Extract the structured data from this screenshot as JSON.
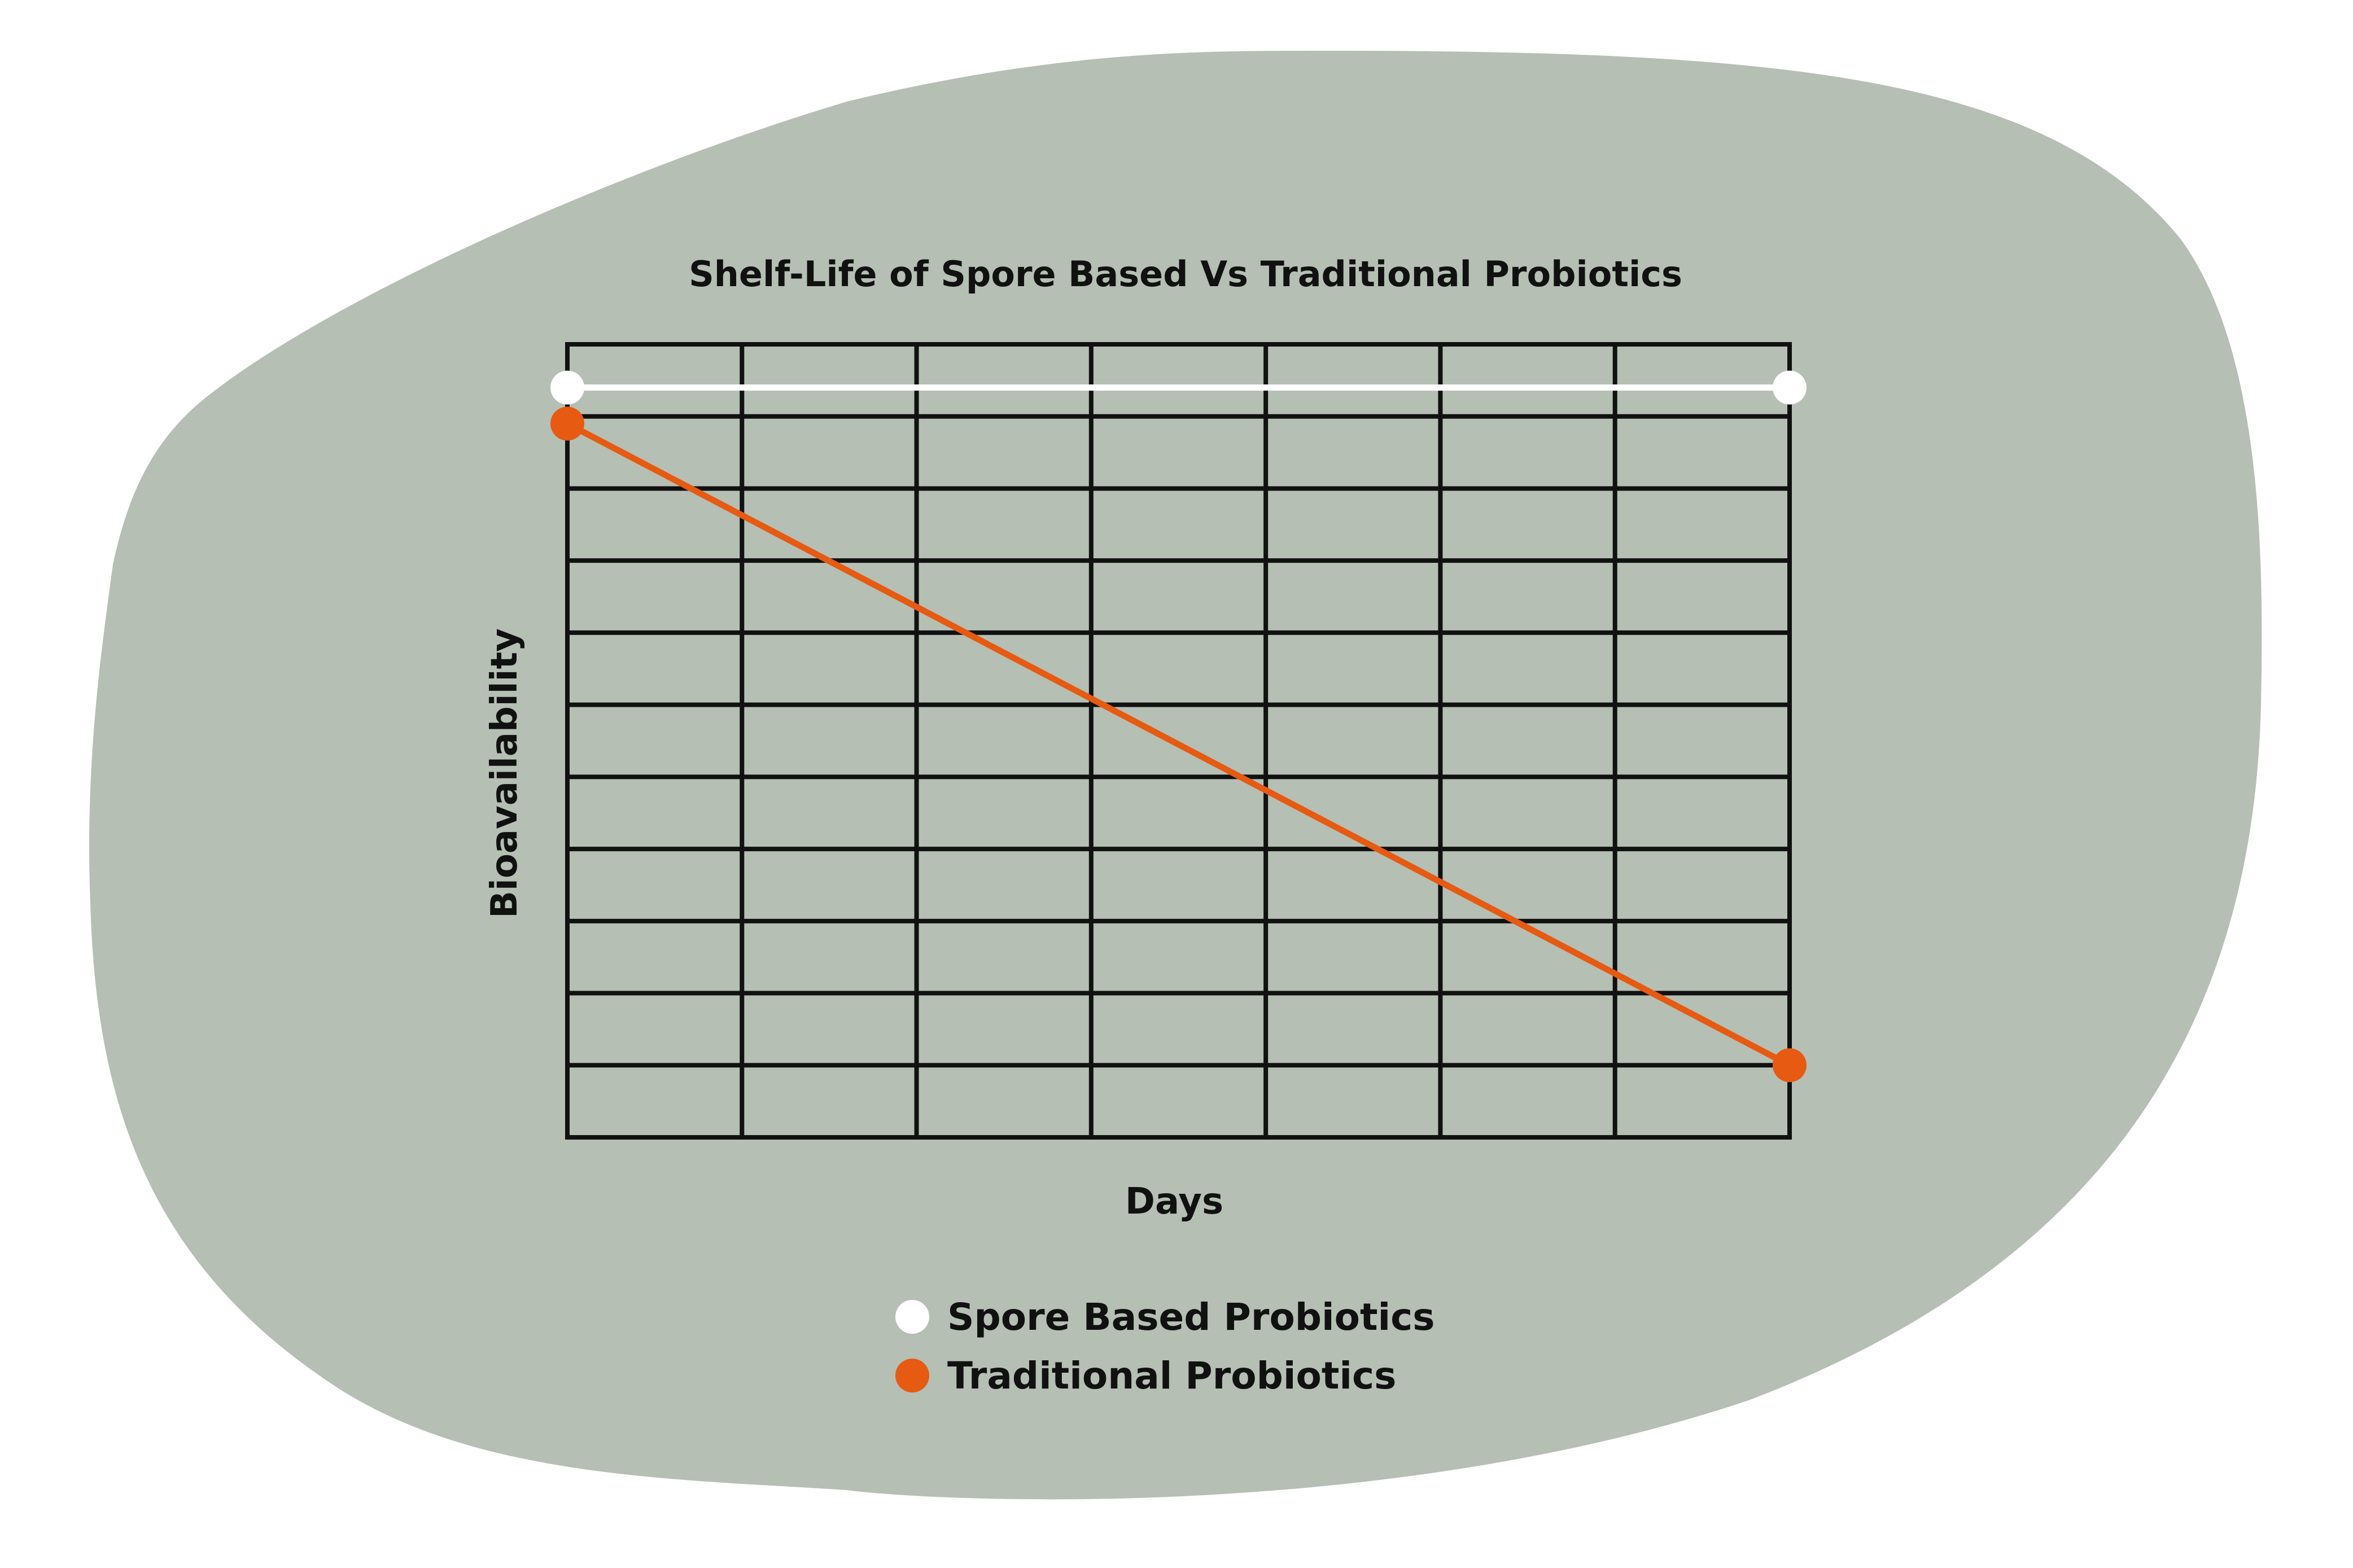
{
  "colors": {
    "background": "#ffffff",
    "blob": "#b5bfb4",
    "grid": "#111111",
    "spore": "#ffffff",
    "traditional": "#e65a12"
  },
  "chart_data": {
    "type": "line",
    "title": "Shelf-Life of Spore Based Vs Traditional Probiotics",
    "xlabel": "Days",
    "ylabel": "Bioavailability",
    "grid": true,
    "x_grid_divisions": 7,
    "y_grid_divisions": 11,
    "xlim": [
      0,
      7
    ],
    "ylim": [
      0,
      11
    ],
    "legend_position": "bottom-center",
    "series": [
      {
        "name": "Spore Based Probiotics",
        "color": "#ffffff",
        "x": [
          0,
          7
        ],
        "y": [
          10.4,
          10.4
        ]
      },
      {
        "name": "Traditional Probiotics",
        "color": "#e65a12",
        "x": [
          0,
          7
        ],
        "y": [
          9.9,
          1.0
        ]
      }
    ]
  }
}
